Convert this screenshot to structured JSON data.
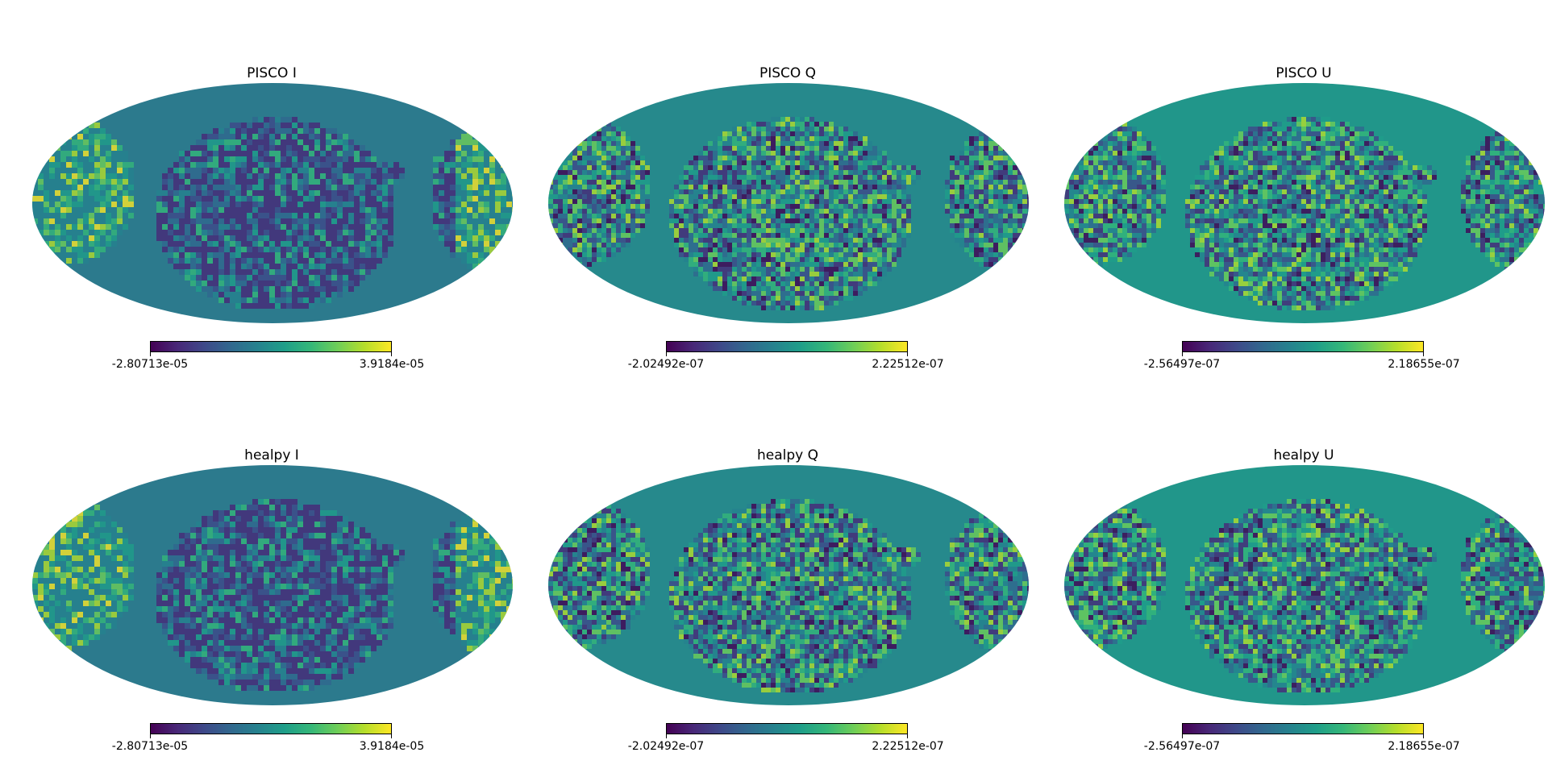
{
  "panels": [
    {
      "title": "PISCO I",
      "vmin": "-2.80713e-05",
      "vmax": "3.9184e-05",
      "field": "I"
    },
    {
      "title": "PISCO Q",
      "vmin": "-2.02492e-07",
      "vmax": "2.22512e-07",
      "field": "Q"
    },
    {
      "title": "PISCO U",
      "vmin": "-2.56497e-07",
      "vmax": "2.18655e-07",
      "field": "U"
    },
    {
      "title": "healpy I",
      "vmin": "-2.80713e-05",
      "vmax": "3.9184e-05",
      "field": "I"
    },
    {
      "title": "healpy Q",
      "vmin": "-2.02492e-07",
      "vmax": "2.22512e-07",
      "field": "Q"
    },
    {
      "title": "healpy U",
      "vmin": "-2.56497e-07",
      "vmax": "2.18655e-07",
      "field": "U"
    }
  ],
  "colormap": [
    "#440154",
    "#482878",
    "#3e4989",
    "#31688e",
    "#26828e",
    "#1f9e89",
    "#35b779",
    "#6ece58",
    "#b5de2b",
    "#fde725"
  ],
  "background_colors": {
    "I": "#2c7a8d",
    "Q": "#26898c",
    "U": "#21968a"
  }
}
